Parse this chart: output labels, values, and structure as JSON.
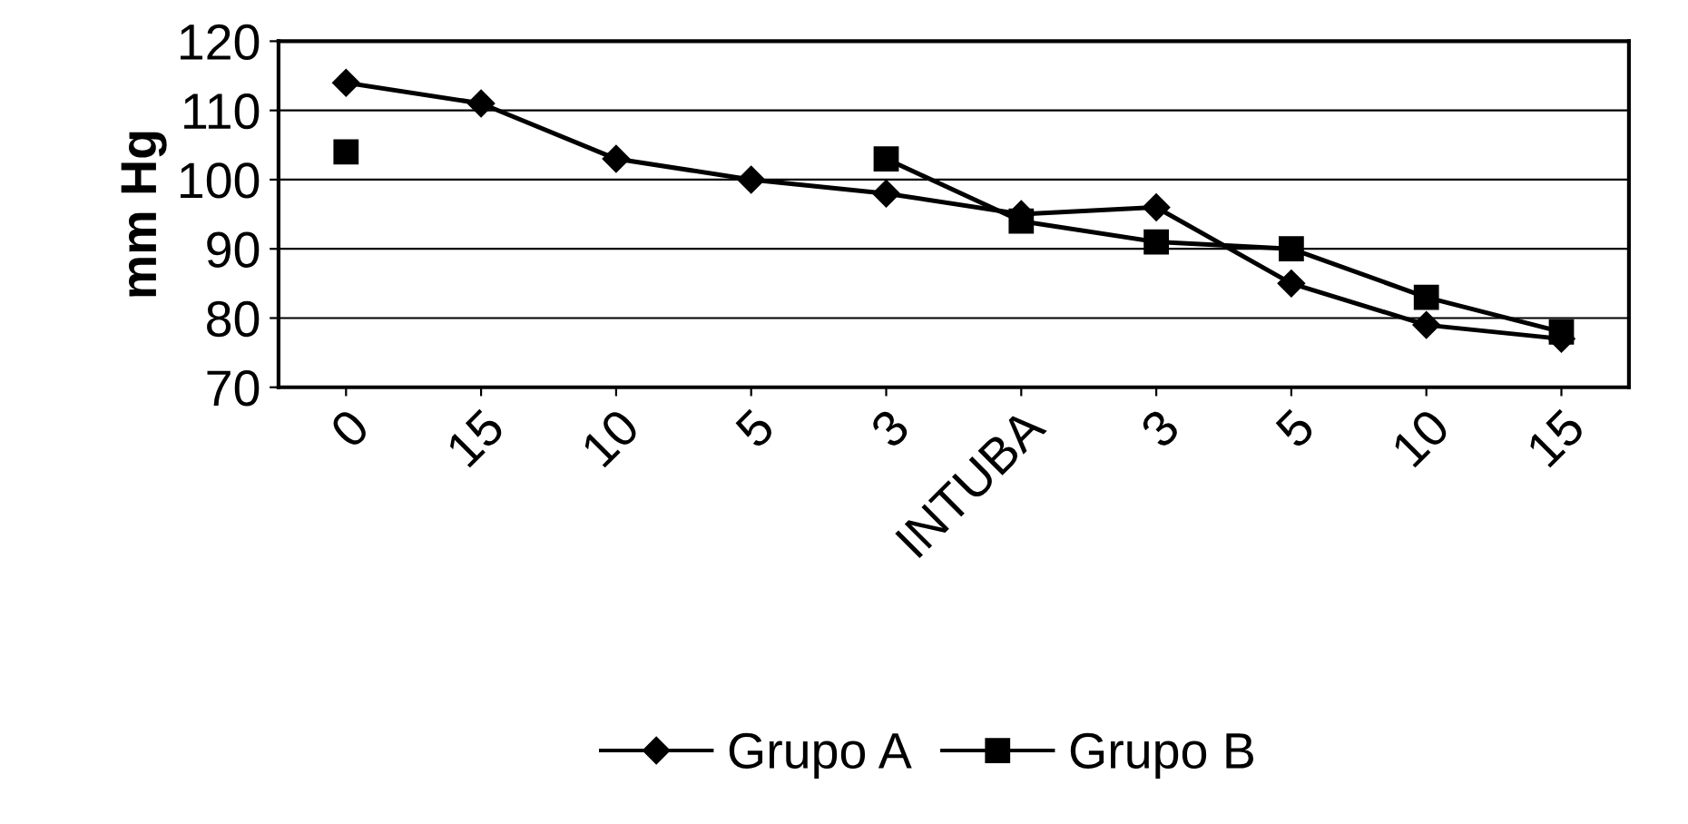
{
  "chart_data": {
    "type": "line",
    "ylabel": "mm Hg",
    "categories": [
      "0",
      "15",
      "10",
      "5",
      "3",
      "INTUBA",
      "3",
      "5",
      "10",
      "15"
    ],
    "series": [
      {
        "name": "Grupo A",
        "color": "#000000",
        "marker": "diamond",
        "values": [
          114,
          111,
          103,
          100,
          98,
          95,
          96,
          85,
          79,
          77
        ]
      },
      {
        "name": "Grupo B",
        "color": "#000000",
        "marker": "square",
        "values": [
          104,
          null,
          null,
          null,
          103,
          94,
          91,
          90,
          83,
          78
        ]
      }
    ],
    "ylim": [
      70,
      120
    ],
    "yticks": [
      70,
      80,
      90,
      100,
      110,
      120
    ],
    "grid": "y",
    "legend": "bottom",
    "line_style": "solid"
  }
}
